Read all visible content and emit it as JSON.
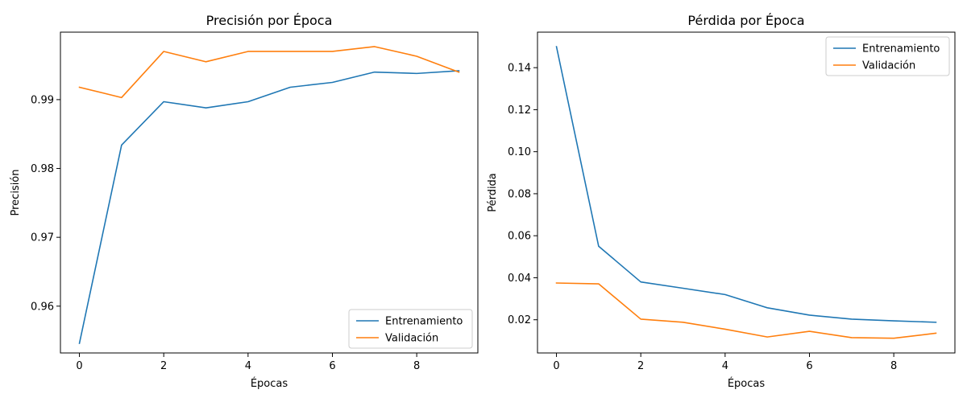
{
  "chart_data": [
    {
      "type": "line",
      "title": "Precisión por Época",
      "xlabel": "Épocas",
      "ylabel": "Precisión",
      "xlim": [
        -0.45,
        9.45
      ],
      "ylim": [
        0.9532,
        0.9998
      ],
      "xticks": [
        0,
        2,
        4,
        6,
        8
      ],
      "yticks": [
        0.96,
        0.97,
        0.98,
        0.99
      ],
      "grid": false,
      "legend_position": "lower-right",
      "x": [
        0,
        1,
        2,
        3,
        4,
        5,
        6,
        7,
        8,
        9
      ],
      "series": [
        {
          "name": "Entrenamiento",
          "color": "#1f77b4",
          "values": [
            0.9546,
            0.9834,
            0.9897,
            0.9888,
            0.9897,
            0.9918,
            0.9925,
            0.994,
            0.9938,
            0.9942
          ]
        },
        {
          "name": "Validación",
          "color": "#ff7f0e",
          "values": [
            0.9918,
            0.9903,
            0.997,
            0.9955,
            0.997,
            0.997,
            0.997,
            0.9977,
            0.9963,
            0.994
          ]
        }
      ]
    },
    {
      "type": "line",
      "title": "Pérdida por Época",
      "xlabel": "Épocas",
      "ylabel": "Pérdida",
      "xlim": [
        -0.45,
        9.45
      ],
      "ylim": [
        0.0042,
        0.1569
      ],
      "xticks": [
        0,
        2,
        4,
        6,
        8
      ],
      "yticks": [
        0.02,
        0.04,
        0.06,
        0.08,
        0.1,
        0.12,
        0.14
      ],
      "grid": false,
      "legend_position": "upper-right",
      "x": [
        0,
        1,
        2,
        3,
        4,
        5,
        6,
        7,
        8,
        9
      ],
      "series": [
        {
          "name": "Entrenamiento",
          "color": "#1f77b4",
          "values": [
            0.15,
            0.055,
            0.038,
            0.035,
            0.032,
            0.0257,
            0.0222,
            0.0203,
            0.0195,
            0.0188
          ]
        },
        {
          "name": "Validación",
          "color": "#ff7f0e",
          "values": [
            0.0375,
            0.0371,
            0.0203,
            0.0188,
            0.0155,
            0.0118,
            0.0145,
            0.0115,
            0.0112,
            0.0136
          ]
        }
      ]
    }
  ]
}
